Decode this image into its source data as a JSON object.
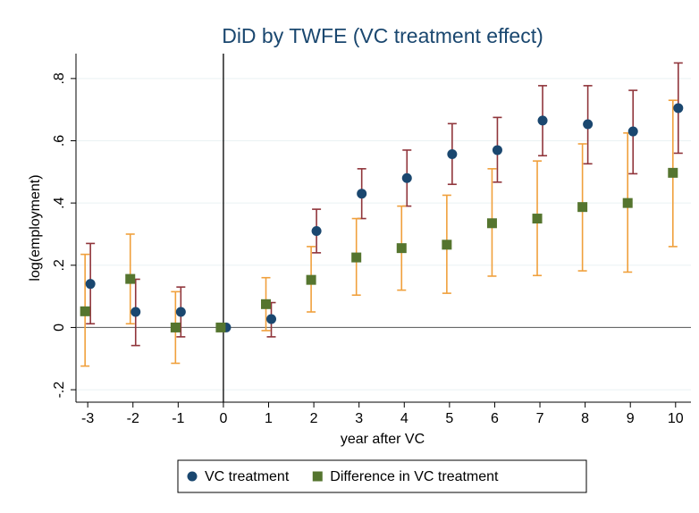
{
  "chart_data": {
    "type": "errorbar",
    "title": "DiD by TWFE (VC treatment effect)",
    "x_label": "year after VC",
    "y_label": "log(employment)",
    "x": [
      -3,
      -2,
      -1,
      0,
      1,
      2,
      3,
      4,
      5,
      6,
      7,
      8,
      9,
      10
    ],
    "xlim": [
      -3.26,
      10.34
    ],
    "xticks": [
      -3,
      -2,
      -1,
      0,
      1,
      2,
      3,
      4,
      5,
      6,
      7,
      8,
      9,
      10
    ],
    "ylim": [
      -0.24,
      0.88
    ],
    "yticks": [
      {
        "value": -0.2,
        "label": "-.2"
      },
      0,
      {
        "value": 0.2,
        "label": ".2"
      },
      {
        "value": 0.4,
        "label": ".4"
      },
      {
        "value": 0.6,
        "label": ".6"
      },
      {
        "value": 0.8,
        "label": ".8"
      }
    ],
    "grid": true,
    "reference_lines": {
      "x": 0,
      "y": 0
    },
    "legend": "bottom",
    "series": [
      {
        "name": "VC treatment",
        "marker": "circle",
        "color": "#1a476f",
        "ci_color": "#90353b",
        "values": [
          0.14,
          0.05,
          0.05,
          0,
          0.027,
          0.31,
          0.43,
          0.48,
          0.557,
          0.57,
          0.665,
          0.653,
          0.63,
          0.705
        ],
        "ci_low": [
          0.012,
          -0.058,
          -0.03,
          null,
          -0.03,
          0.24,
          0.35,
          0.39,
          0.46,
          0.467,
          0.552,
          0.526,
          0.494,
          0.56
        ],
        "ci_high": [
          0.27,
          0.155,
          0.13,
          null,
          0.08,
          0.38,
          0.51,
          0.57,
          0.655,
          0.675,
          0.777,
          0.777,
          0.762,
          0.85
        ]
      },
      {
        "name": "Difference in VC treatment",
        "marker": "square",
        "color": "#55752f",
        "ci_color": "#f0a03c",
        "values": [
          0.052,
          0.156,
          0,
          0,
          0.075,
          0.153,
          0.225,
          0.255,
          0.266,
          0.335,
          0.35,
          0.387,
          0.4,
          0.497
        ],
        "ci_low": [
          -0.124,
          0.012,
          -0.115,
          null,
          -0.01,
          0.05,
          0.104,
          0.12,
          0.11,
          0.165,
          0.167,
          0.182,
          0.178,
          0.26
        ],
        "ci_high": [
          0.235,
          0.3,
          0.115,
          null,
          0.16,
          0.26,
          0.35,
          0.39,
          0.425,
          0.51,
          0.535,
          0.59,
          0.625,
          0.73
        ]
      }
    ]
  }
}
